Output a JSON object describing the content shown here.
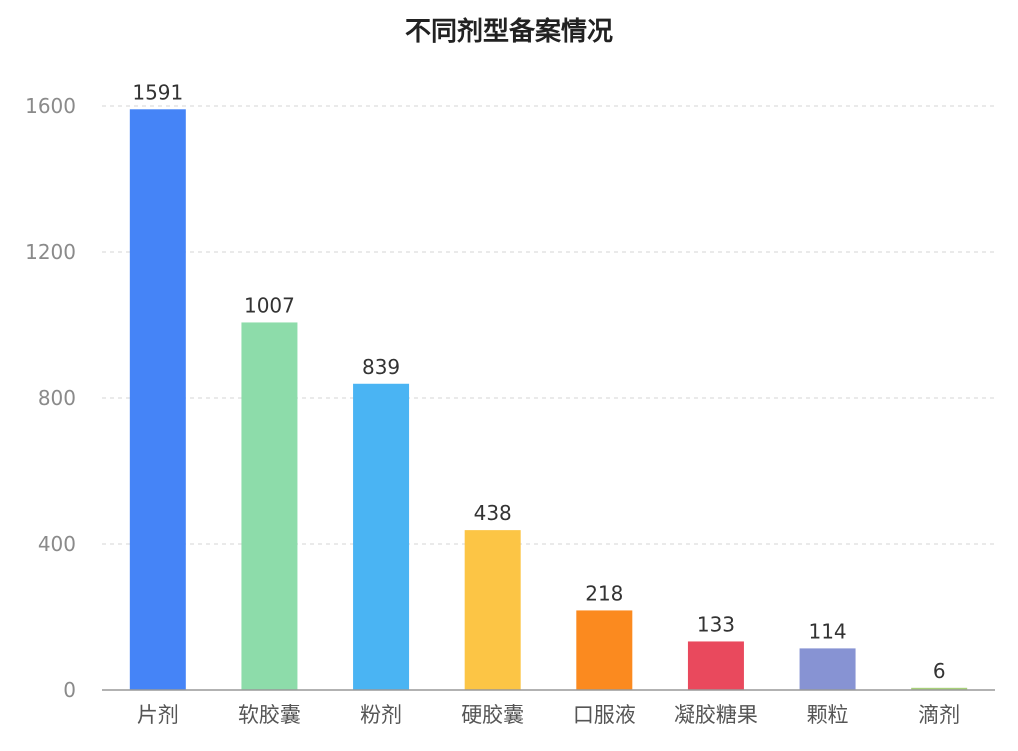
{
  "chart_data": {
    "type": "bar",
    "title": "不同剂型备案情况",
    "categories": [
      "片剂",
      "软胶囊",
      "粉剂",
      "硬胶囊",
      "口服液",
      "凝胶糖果",
      "颗粒",
      "滴剂"
    ],
    "values": [
      1591,
      1007,
      839,
      438,
      218,
      133,
      114,
      6
    ],
    "colors": [
      "#4584f7",
      "#8ddcaa",
      "#4ab4f3",
      "#fcc545",
      "#fb8a1f",
      "#e9495d",
      "#8793d3",
      "#a8d07a"
    ],
    "yticks": [
      0,
      400,
      800,
      1200,
      1600
    ],
    "ylim": [
      0,
      1600
    ],
    "grid": true,
    "legend": "none",
    "xlabel": "",
    "ylabel": ""
  }
}
